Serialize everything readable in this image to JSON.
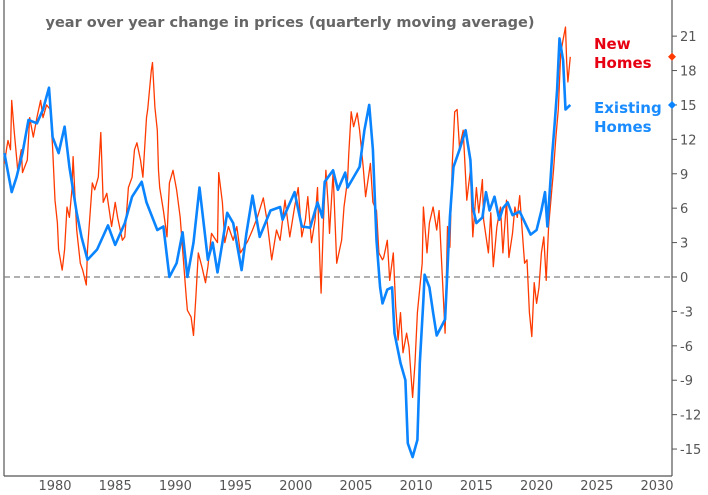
{
  "chart_data": {
    "type": "line",
    "title": "year over year change in prices (quarterly moving average)",
    "xlabel": "",
    "ylabel": "",
    "xlim": [
      1975.8,
      2031.3
    ],
    "ylim": [
      -17.4,
      24
    ],
    "x_ticks": [
      "1980",
      "1985",
      "1990",
      "1995",
      "2000",
      "2005",
      "2010",
      "2015",
      "2020",
      "2025",
      "2030"
    ],
    "y_ticks": [
      "-15",
      "-12",
      "-9",
      "-6",
      "-3",
      "0",
      "3",
      "6",
      "9",
      "12",
      "15",
      "18",
      "21"
    ],
    "y_axis_side": "right",
    "reference_line": 0,
    "grid": false,
    "legend_placement": "right",
    "colors": {
      "new_homes": "#ff3a00",
      "existing_homes": "#0a84ff",
      "new_label": "#e60012",
      "existing_label": "#1a8cff",
      "axis": "#555555",
      "zero_line": "#808080"
    },
    "series": [
      {
        "name": "New Homes",
        "label_lines": [
          "New",
          "Homes"
        ],
        "last_value": 19.2,
        "points": [
          [
            1975.8,
            9.9
          ],
          [
            1976.0,
            11.3
          ],
          [
            1976.1,
            11.9
          ],
          [
            1976.3,
            11.1
          ],
          [
            1976.4,
            15.4
          ],
          [
            1976.6,
            12.8
          ],
          [
            1976.8,
            10.5
          ],
          [
            1976.9,
            9.3
          ],
          [
            1977.2,
            11.1
          ],
          [
            1977.3,
            9.1
          ],
          [
            1977.7,
            10.2
          ],
          [
            1977.9,
            13.9
          ],
          [
            1978.2,
            12.2
          ],
          [
            1978.5,
            13.9
          ],
          [
            1978.8,
            15.4
          ],
          [
            1979.0,
            13.9
          ],
          [
            1979.3,
            15.0
          ],
          [
            1979.6,
            14.6
          ],
          [
            1979.7,
            13.1
          ],
          [
            1979.8,
            11.3
          ],
          [
            1980.0,
            6.7
          ],
          [
            1980.2,
            4.7
          ],
          [
            1980.3,
            2.4
          ],
          [
            1980.6,
            0.6
          ],
          [
            1980.8,
            2.4
          ],
          [
            1981.0,
            6.1
          ],
          [
            1981.2,
            5.2
          ],
          [
            1981.4,
            7.6
          ],
          [
            1981.5,
            10.5
          ],
          [
            1981.7,
            6.1
          ],
          [
            1981.8,
            4.1
          ],
          [
            1982.1,
            1.2
          ],
          [
            1982.3,
            0.6
          ],
          [
            1982.6,
            -0.7
          ],
          [
            1982.7,
            2.4
          ],
          [
            1983.1,
            8.2
          ],
          [
            1983.3,
            7.6
          ],
          [
            1983.6,
            8.7
          ],
          [
            1983.8,
            12.6
          ],
          [
            1984.0,
            6.5
          ],
          [
            1984.3,
            7.3
          ],
          [
            1984.7,
            4.4
          ],
          [
            1985.0,
            6.5
          ],
          [
            1985.2,
            5.2
          ],
          [
            1985.6,
            3.2
          ],
          [
            1985.8,
            3.5
          ],
          [
            1986.1,
            7.8
          ],
          [
            1986.4,
            8.7
          ],
          [
            1986.6,
            11.1
          ],
          [
            1986.8,
            11.7
          ],
          [
            1987.1,
            10.2
          ],
          [
            1987.3,
            8.7
          ],
          [
            1987.6,
            13.9
          ],
          [
            1987.7,
            14.6
          ],
          [
            1988.0,
            18.0
          ],
          [
            1988.1,
            18.7
          ],
          [
            1988.3,
            14.8
          ],
          [
            1988.5,
            12.8
          ],
          [
            1988.6,
            9.3
          ],
          [
            1988.7,
            7.8
          ],
          [
            1989.0,
            5.8
          ],
          [
            1989.3,
            3.5
          ],
          [
            1989.5,
            8.2
          ],
          [
            1989.8,
            9.3
          ],
          [
            1990.1,
            7.6
          ],
          [
            1990.4,
            5.2
          ],
          [
            1990.6,
            2.4
          ],
          [
            1990.9,
            -1.7
          ],
          [
            1991.0,
            -2.9
          ],
          [
            1991.3,
            -3.5
          ],
          [
            1991.5,
            -5.1
          ],
          [
            1991.7,
            -1.7
          ],
          [
            1991.9,
            2.1
          ],
          [
            1992.2,
            0.9
          ],
          [
            1992.5,
            -0.5
          ],
          [
            1992.7,
            0.9
          ],
          [
            1993.0,
            3.8
          ],
          [
            1993.5,
            3.0
          ],
          [
            1993.6,
            9.1
          ],
          [
            1993.9,
            6.5
          ],
          [
            1994.1,
            3.0
          ],
          [
            1994.4,
            4.4
          ],
          [
            1994.8,
            3.2
          ],
          [
            1995.1,
            4.4
          ],
          [
            1995.4,
            2.1
          ],
          [
            1996.0,
            3.1
          ],
          [
            1996.4,
            4.1
          ],
          [
            1996.8,
            5.2
          ],
          [
            1997.3,
            6.9
          ],
          [
            1997.6,
            5.0
          ],
          [
            1998.0,
            1.5
          ],
          [
            1998.4,
            4.1
          ],
          [
            1998.7,
            3.2
          ],
          [
            1999.1,
            6.7
          ],
          [
            1999.5,
            3.5
          ],
          [
            1999.9,
            6.1
          ],
          [
            2000.2,
            7.8
          ],
          [
            2000.5,
            3.5
          ],
          [
            2000.8,
            5.0
          ],
          [
            2001.0,
            7.0
          ],
          [
            2001.3,
            3.0
          ],
          [
            2001.6,
            5.0
          ],
          [
            2001.8,
            7.8
          ],
          [
            2002.0,
            1.2
          ],
          [
            2002.1,
            -1.4
          ],
          [
            2002.3,
            5.0
          ],
          [
            2002.5,
            9.3
          ],
          [
            2002.7,
            6.1
          ],
          [
            2002.8,
            3.8
          ],
          [
            2003.1,
            9.1
          ],
          [
            2003.4,
            1.2
          ],
          [
            2003.8,
            3.2
          ],
          [
            2004.0,
            6.1
          ],
          [
            2004.3,
            8.5
          ],
          [
            2004.4,
            10.8
          ],
          [
            2004.6,
            14.4
          ],
          [
            2004.8,
            13.1
          ],
          [
            2005.1,
            14.3
          ],
          [
            2005.3,
            12.8
          ],
          [
            2005.6,
            9.6
          ],
          [
            2005.8,
            7.0
          ],
          [
            2006.2,
            9.9
          ],
          [
            2006.4,
            6.5
          ],
          [
            2006.7,
            5.8
          ],
          [
            2006.9,
            2.1
          ],
          [
            2007.2,
            1.5
          ],
          [
            2007.3,
            1.7
          ],
          [
            2007.6,
            3.2
          ],
          [
            2007.8,
            -0.3
          ],
          [
            2008.1,
            2.1
          ],
          [
            2008.3,
            -2.6
          ],
          [
            2008.5,
            -5.5
          ],
          [
            2008.7,
            -3.1
          ],
          [
            2008.9,
            -6.6
          ],
          [
            2009.2,
            -4.9
          ],
          [
            2009.4,
            -6.1
          ],
          [
            2009.7,
            -10.5
          ],
          [
            2009.9,
            -7.5
          ],
          [
            2010.1,
            -3.1
          ],
          [
            2010.5,
            1.2
          ],
          [
            2010.6,
            6.1
          ],
          [
            2010.9,
            2.1
          ],
          [
            2011.1,
            4.7
          ],
          [
            2011.4,
            6.1
          ],
          [
            2011.7,
            4.1
          ],
          [
            2011.9,
            5.8
          ],
          [
            2012.1,
            1.5
          ],
          [
            2012.4,
            -4.9
          ],
          [
            2012.6,
            4.4
          ],
          [
            2012.8,
            2.6
          ],
          [
            2013.0,
            9.9
          ],
          [
            2013.2,
            14.4
          ],
          [
            2013.4,
            14.6
          ],
          [
            2013.6,
            11.3
          ],
          [
            2013.9,
            12.8
          ],
          [
            2014.2,
            6.7
          ],
          [
            2014.5,
            9.3
          ],
          [
            2014.7,
            3.5
          ],
          [
            2015.0,
            7.8
          ],
          [
            2015.2,
            5.6
          ],
          [
            2015.5,
            8.5
          ],
          [
            2015.6,
            5.0
          ],
          [
            2016.0,
            2.1
          ],
          [
            2016.2,
            5.6
          ],
          [
            2016.4,
            0.9
          ],
          [
            2016.7,
            4.4
          ],
          [
            2017.0,
            6.1
          ],
          [
            2017.2,
            2.1
          ],
          [
            2017.5,
            6.7
          ],
          [
            2017.7,
            1.7
          ],
          [
            2018.0,
            3.8
          ],
          [
            2018.2,
            6.1
          ],
          [
            2018.4,
            5.2
          ],
          [
            2018.6,
            7.1
          ],
          [
            2018.9,
            2.6
          ],
          [
            2019.0,
            1.2
          ],
          [
            2019.2,
            1.5
          ],
          [
            2019.4,
            -3.1
          ],
          [
            2019.6,
            -5.2
          ],
          [
            2019.8,
            -0.5
          ],
          [
            2020.0,
            -2.3
          ],
          [
            2020.2,
            -0.9
          ],
          [
            2020.4,
            2.1
          ],
          [
            2020.6,
            3.5
          ],
          [
            2020.8,
            -0.3
          ],
          [
            2021.0,
            4.4
          ],
          [
            2021.4,
            9.3
          ],
          [
            2021.6,
            12.2
          ],
          [
            2021.8,
            14.6
          ],
          [
            2022.0,
            19.5
          ],
          [
            2022.2,
            20.7
          ],
          [
            2022.4,
            21.8
          ],
          [
            2022.5,
            18.7
          ],
          [
            2022.6,
            17.0
          ],
          [
            2022.8,
            19.2
          ]
        ]
      },
      {
        "name": "Existing Homes",
        "label_lines": [
          "Existing",
          "Homes"
        ],
        "last_value": 15.0,
        "points": [
          [
            1975.8,
            10.8
          ],
          [
            1976.4,
            7.4
          ],
          [
            1976.8,
            8.7
          ],
          [
            1977.3,
            10.8
          ],
          [
            1977.8,
            13.7
          ],
          [
            1978.5,
            13.4
          ],
          [
            1979.0,
            14.6
          ],
          [
            1979.5,
            16.5
          ],
          [
            1979.8,
            12.2
          ],
          [
            1980.3,
            10.8
          ],
          [
            1980.8,
            13.1
          ],
          [
            1981.2,
            9.6
          ],
          [
            1981.8,
            5.6
          ],
          [
            1982.2,
            3.5
          ],
          [
            1982.7,
            1.5
          ],
          [
            1983.5,
            2.4
          ],
          [
            1984.4,
            4.5
          ],
          [
            1985.0,
            2.8
          ],
          [
            1985.8,
            4.7
          ],
          [
            1986.4,
            7.0
          ],
          [
            1987.2,
            8.3
          ],
          [
            1987.6,
            6.5
          ],
          [
            1988.5,
            4.1
          ],
          [
            1989.0,
            4.4
          ],
          [
            1989.5,
            0.0
          ],
          [
            1990.1,
            1.2
          ],
          [
            1990.6,
            3.9
          ],
          [
            1991.0,
            0.0
          ],
          [
            1991.5,
            3.0
          ],
          [
            1992.0,
            7.8
          ],
          [
            1992.7,
            1.5
          ],
          [
            1993.1,
            3.0
          ],
          [
            1993.5,
            0.4
          ],
          [
            1993.9,
            3.0
          ],
          [
            1994.3,
            5.6
          ],
          [
            1994.8,
            4.7
          ],
          [
            1995.5,
            0.6
          ],
          [
            1995.9,
            3.8
          ],
          [
            1996.4,
            7.1
          ],
          [
            1997.0,
            3.5
          ],
          [
            1997.9,
            5.8
          ],
          [
            1998.7,
            6.1
          ],
          [
            1998.9,
            5.0
          ],
          [
            1999.9,
            7.4
          ],
          [
            2000.5,
            4.4
          ],
          [
            2001.2,
            4.3
          ],
          [
            2001.8,
            6.5
          ],
          [
            2002.2,
            5.2
          ],
          [
            2002.4,
            8.3
          ],
          [
            2003.1,
            9.3
          ],
          [
            2003.5,
            7.6
          ],
          [
            2004.1,
            9.1
          ],
          [
            2004.3,
            7.8
          ],
          [
            2005.3,
            9.6
          ],
          [
            2005.7,
            12.8
          ],
          [
            2006.1,
            15.0
          ],
          [
            2006.4,
            11.1
          ],
          [
            2006.7,
            3.2
          ],
          [
            2007.0,
            -0.9
          ],
          [
            2007.2,
            -2.3
          ],
          [
            2007.6,
            -1.1
          ],
          [
            2008.0,
            -0.9
          ],
          [
            2008.2,
            -4.9
          ],
          [
            2008.7,
            -7.5
          ],
          [
            2009.1,
            -9.0
          ],
          [
            2009.3,
            -14.5
          ],
          [
            2009.7,
            -15.7
          ],
          [
            2010.1,
            -14.2
          ],
          [
            2010.3,
            -7.5
          ],
          [
            2010.6,
            -2.0
          ],
          [
            2010.7,
            0.2
          ],
          [
            2011.1,
            -0.9
          ],
          [
            2011.4,
            -3.1
          ],
          [
            2011.7,
            -5.1
          ],
          [
            2012.4,
            -3.7
          ],
          [
            2012.8,
            5.2
          ],
          [
            2013.1,
            9.6
          ],
          [
            2013.6,
            11.1
          ],
          [
            2014.1,
            12.8
          ],
          [
            2014.5,
            10.2
          ],
          [
            2014.7,
            6.1
          ],
          [
            2015.0,
            4.7
          ],
          [
            2015.5,
            5.2
          ],
          [
            2015.8,
            7.4
          ],
          [
            2016.1,
            5.8
          ],
          [
            2016.5,
            7.0
          ],
          [
            2016.9,
            5.0
          ],
          [
            2017.2,
            6.0
          ],
          [
            2017.6,
            6.5
          ],
          [
            2018.0,
            5.4
          ],
          [
            2018.6,
            5.7
          ],
          [
            2019.0,
            4.8
          ],
          [
            2019.5,
            3.7
          ],
          [
            2020.0,
            4.1
          ],
          [
            2020.4,
            5.8
          ],
          [
            2020.7,
            7.4
          ],
          [
            2020.9,
            4.4
          ],
          [
            2021.3,
            10.8
          ],
          [
            2021.5,
            13.4
          ],
          [
            2021.7,
            16.3
          ],
          [
            2021.9,
            20.8
          ],
          [
            2022.2,
            18.9
          ],
          [
            2022.4,
            14.6
          ],
          [
            2022.8,
            15.0
          ]
        ]
      }
    ]
  }
}
